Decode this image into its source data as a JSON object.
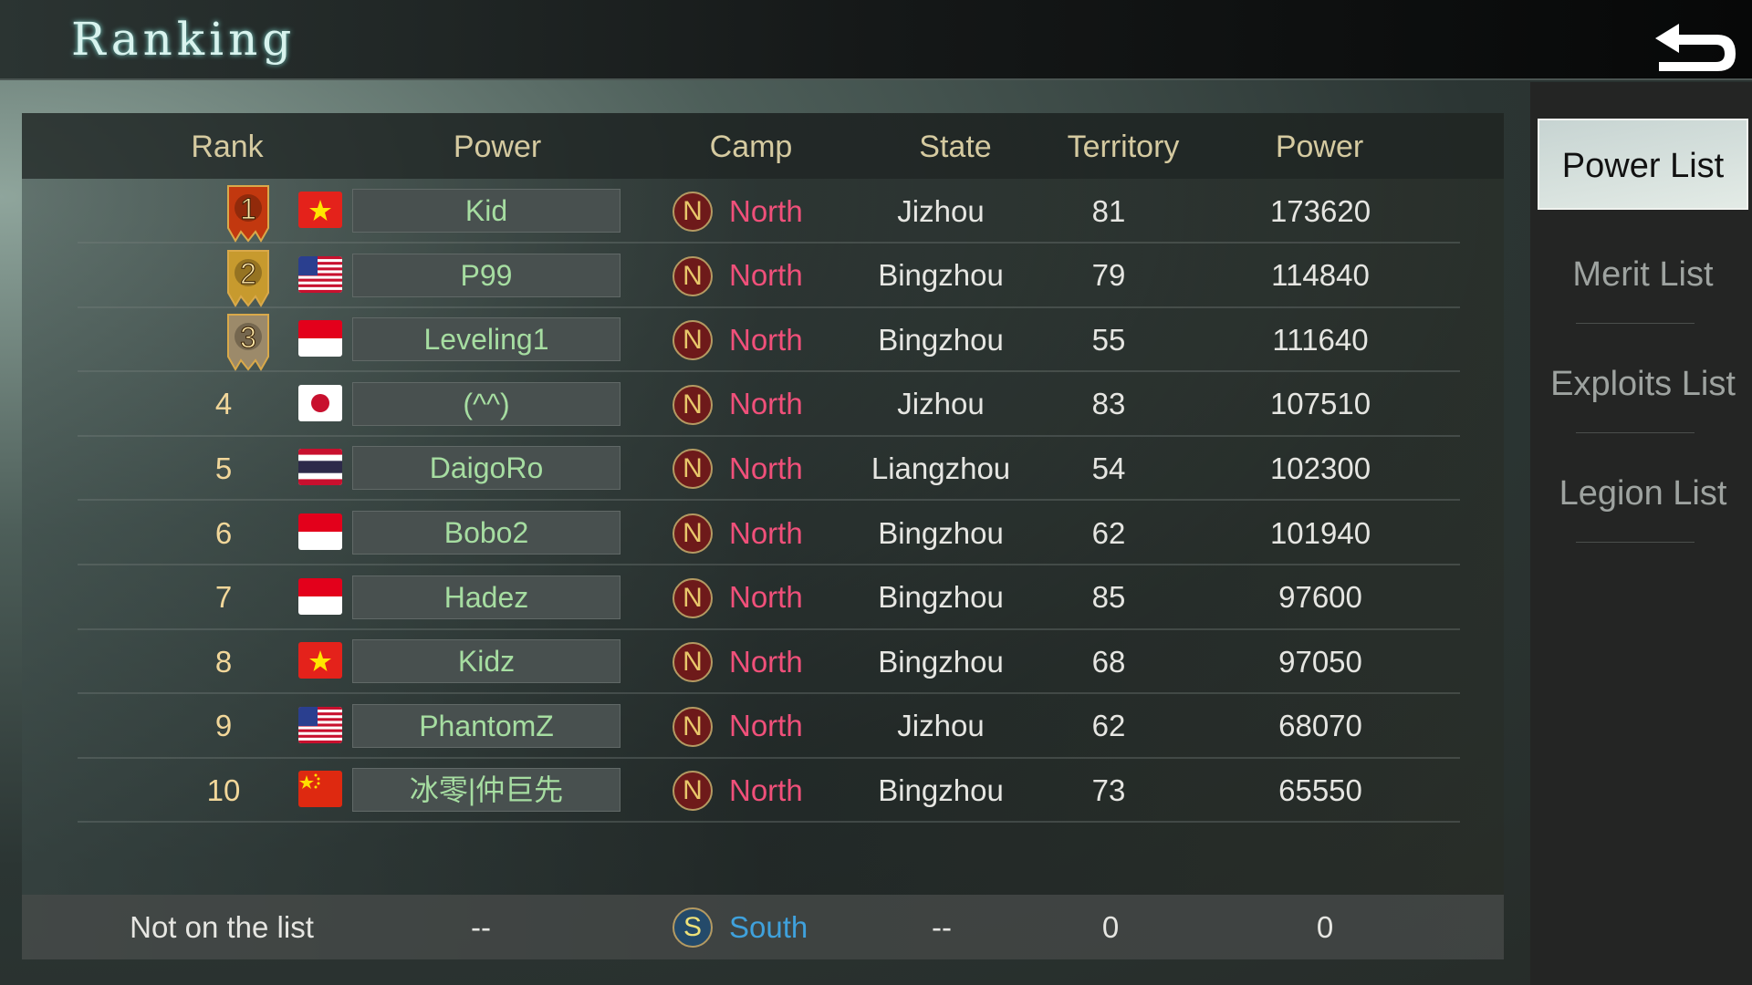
{
  "header": {
    "title": "Ranking",
    "back_icon": "back-arrow-icon"
  },
  "table": {
    "columns": [
      "Rank",
      "Power",
      "Camp",
      "State",
      "Territory",
      "Power"
    ],
    "rows": [
      {
        "rank": "1",
        "flag": "vietnam",
        "name": "Kid",
        "camp": "North",
        "camp_icon": "N",
        "state": "Jizhou",
        "territory": "81",
        "power": "173620"
      },
      {
        "rank": "2",
        "flag": "usa",
        "name": "P99",
        "camp": "North",
        "camp_icon": "N",
        "state": "Bingzhou",
        "territory": "79",
        "power": "114840"
      },
      {
        "rank": "3",
        "flag": "indonesia",
        "name": "Leveling1",
        "camp": "North",
        "camp_icon": "N",
        "state": "Bingzhou",
        "territory": "55",
        "power": "111640"
      },
      {
        "rank": "4",
        "flag": "japan",
        "name": "(^^)",
        "camp": "North",
        "camp_icon": "N",
        "state": "Jizhou",
        "territory": "83",
        "power": "107510"
      },
      {
        "rank": "5",
        "flag": "thailand",
        "name": "DaigoRo",
        "camp": "North",
        "camp_icon": "N",
        "state": "Liangzhou",
        "territory": "54",
        "power": "102300"
      },
      {
        "rank": "6",
        "flag": "indonesia",
        "name": "Bobo2",
        "camp": "North",
        "camp_icon": "N",
        "state": "Bingzhou",
        "territory": "62",
        "power": "101940"
      },
      {
        "rank": "7",
        "flag": "indonesia",
        "name": "Hadez",
        "camp": "North",
        "camp_icon": "N",
        "state": "Bingzhou",
        "territory": "85",
        "power": "97600"
      },
      {
        "rank": "8",
        "flag": "vietnam",
        "name": "Kidz",
        "camp": "North",
        "camp_icon": "N",
        "state": "Bingzhou",
        "territory": "68",
        "power": "97050"
      },
      {
        "rank": "9",
        "flag": "usa",
        "name": "PhantomZ",
        "camp": "North",
        "camp_icon": "N",
        "state": "Jizhou",
        "territory": "62",
        "power": "68070"
      },
      {
        "rank": "10",
        "flag": "china",
        "name": "冰零|仲巨先",
        "camp": "North",
        "camp_icon": "N",
        "state": "Bingzhou",
        "territory": "73",
        "power": "65550"
      }
    ],
    "self": {
      "rank": "Not on the list",
      "name": "--",
      "camp": "South",
      "camp_icon": "S",
      "state": "--",
      "territory": "0",
      "power": "0"
    }
  },
  "sidebar": {
    "items": [
      {
        "label": "Power List",
        "active": true
      },
      {
        "label": "Merit List"
      },
      {
        "label": "Exploits List"
      },
      {
        "label": "Legion List"
      }
    ]
  },
  "colors": {
    "north": "#f0507a",
    "south": "#3fa1dc",
    "name": "#a6dda1",
    "header": "#d5caa0",
    "medal_gold": "#c2380f",
    "medal_silver": "#c79a2e",
    "medal_bronze": "#9c8a6a"
  }
}
